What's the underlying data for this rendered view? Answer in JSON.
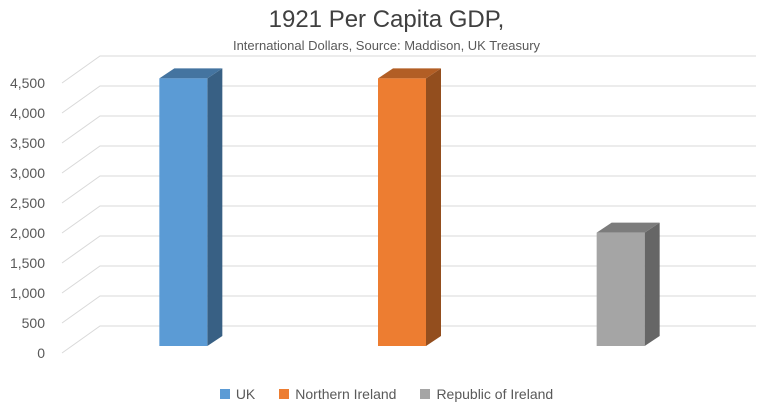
{
  "chart_data": {
    "type": "bar",
    "title": "1921 Per Capita GDP,",
    "subtitle": "International Dollars, Source: Maddison, UK Treasury",
    "categories": [
      "UK",
      "Northern Ireland",
      "Republic of Ireland"
    ],
    "series": [
      {
        "name": "UK",
        "value": 4460,
        "color": "#5B9BD5"
      },
      {
        "name": "Northern Ireland",
        "value": 4460,
        "color": "#ED7D31"
      },
      {
        "name": "Republic of Ireland",
        "value": 1890,
        "color": "#A5A5A5"
      }
    ],
    "ylim": [
      0,
      4500
    ],
    "yticks": [
      "0",
      "500",
      "1,000",
      "1,500",
      "2,000",
      "2,500",
      "3,000",
      "3,500",
      "4,000",
      "4,500"
    ],
    "gridlines": true,
    "legend_position": "bottom",
    "style": "3d-column"
  }
}
